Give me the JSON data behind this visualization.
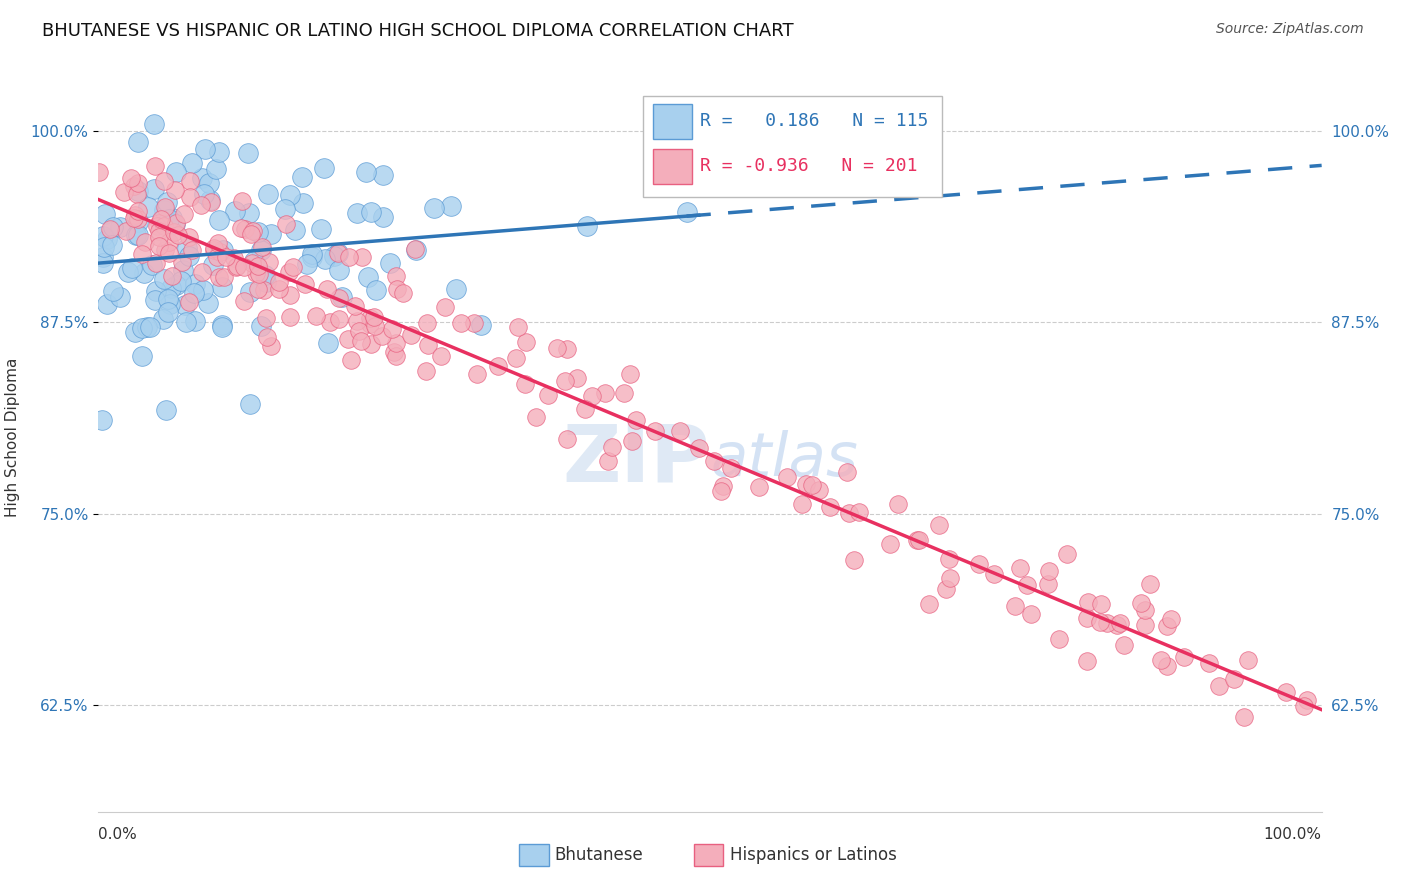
{
  "title": "BHUTANESE VS HISPANIC OR LATINO HIGH SCHOOL DIPLOMA CORRELATION CHART",
  "source": "Source: ZipAtlas.com",
  "ylabel": "High School Diploma",
  "blue_R": 0.186,
  "blue_N": 115,
  "pink_R": -0.936,
  "pink_N": 201,
  "ytick_labels": [
    "62.5%",
    "75.0%",
    "87.5%",
    "100.0%"
  ],
  "ytick_values": [
    0.625,
    0.75,
    0.875,
    1.0
  ],
  "xlim": [
    0.0,
    1.0
  ],
  "ylim": [
    0.555,
    1.045
  ],
  "blue_color": "#A8D0EE",
  "blue_edge_color": "#5B9BD5",
  "blue_line_color": "#2E75B6",
  "pink_color": "#F4AEBB",
  "pink_edge_color": "#E86080",
  "pink_line_color": "#E83060",
  "tick_color": "#2E75B6",
  "watermark_color": "#C8D8F0",
  "background_color": "#FFFFFF",
  "grid_color": "#CCCCCC",
  "title_fontsize": 13,
  "source_fontsize": 10,
  "label_fontsize": 11,
  "tick_fontsize": 11,
  "legend_fontsize": 13
}
